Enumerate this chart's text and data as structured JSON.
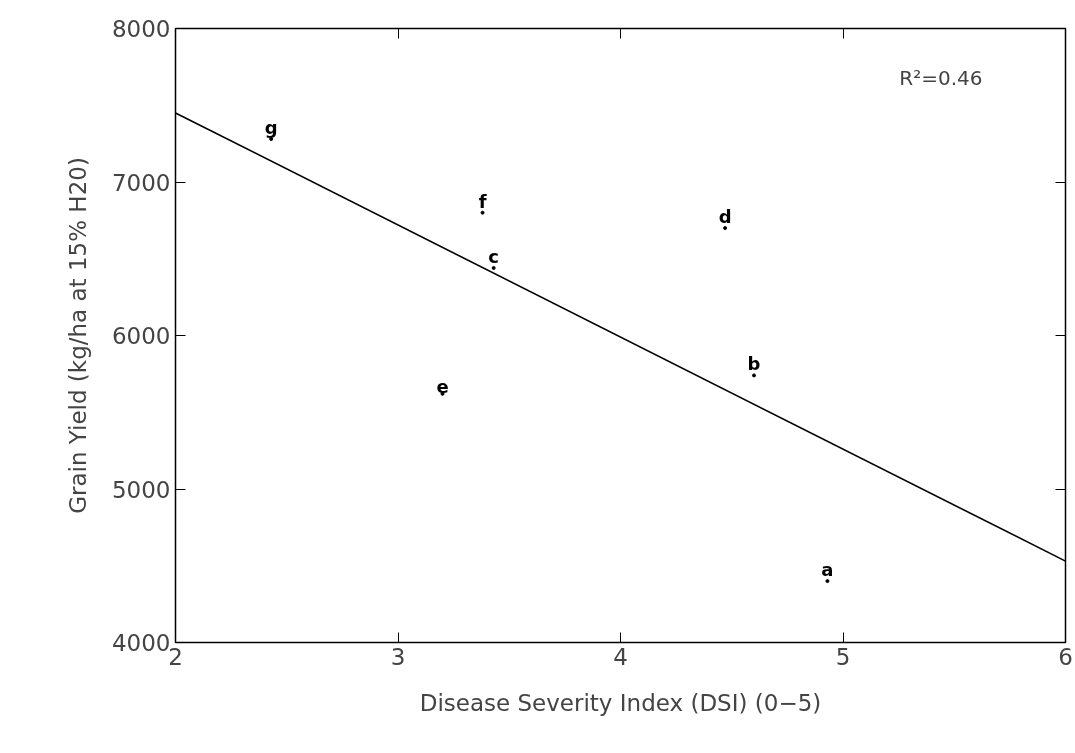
{
  "chart_data": {
    "type": "scatter",
    "xlabel": "Disease Severity Index (DSI) (0−5)",
    "ylabel": "Grain Yield (kg/ha at 15% H20)",
    "annotations": [
      "R²=0.46"
    ],
    "series": [
      {
        "marker": "circle",
        "color": "#000000",
        "x": [
          4.93,
          4.6,
          3.43,
          4.47,
          3.2,
          3.38,
          2.43
        ],
        "values": [
          4400,
          5740,
          6440,
          6700,
          5620,
          6800,
          7280
        ],
        "value_labels": [
          "a",
          "b",
          "c",
          "d",
          "e",
          "f",
          "g"
        ]
      },
      {
        "type": "line",
        "color": "#000000",
        "line_style": "solid",
        "x": [
          2,
          6
        ],
        "values": [
          7450,
          4530
        ]
      }
    ],
    "xlim": [
      2,
      6
    ],
    "xticks": [
      2,
      3,
      4,
      5,
      6
    ],
    "ylim": [
      4000,
      8000
    ],
    "yticks": [
      4000,
      5000,
      6000,
      7000,
      8000
    ],
    "grid": false,
    "legend": false
  }
}
